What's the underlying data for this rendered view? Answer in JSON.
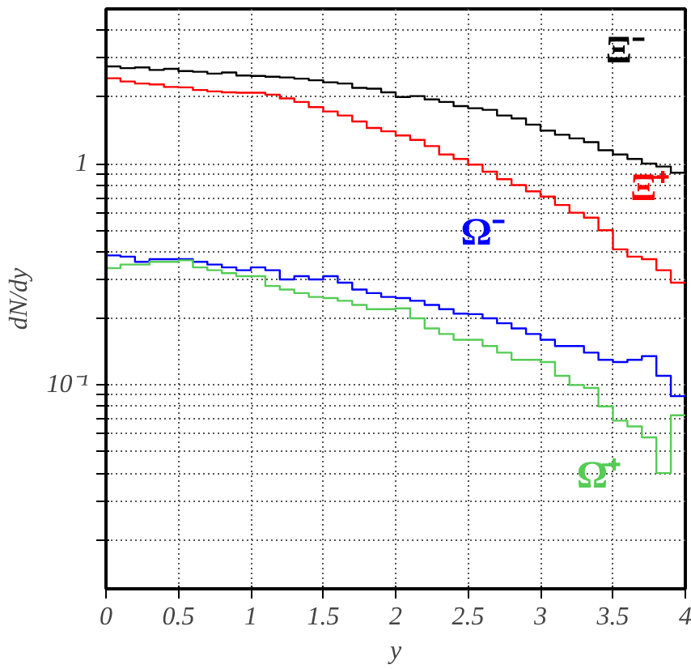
{
  "chart_data": {
    "type": "histogram",
    "xlabel": "y",
    "ylabel": "dN/dy",
    "log": "y",
    "grid": true,
    "line_style": "solid",
    "marker": "none",
    "xlim": [
      0,
      4
    ],
    "ylim": [
      0.012,
      5
    ],
    "xticks": [
      0,
      0.5,
      1,
      1.5,
      2,
      2.5,
      3,
      3.5,
      4
    ],
    "yticks": [
      {
        "value": 0.02,
        "label": null
      },
      {
        "value": 0.03,
        "label": null
      },
      {
        "value": 0.04,
        "label": null
      },
      {
        "value": 0.05,
        "label": null
      },
      {
        "value": 0.06,
        "label": null
      },
      {
        "value": 0.07,
        "label": null
      },
      {
        "value": 0.08,
        "label": null
      },
      {
        "value": 0.09,
        "label": null
      },
      {
        "value": 0.1,
        "label": "10⁻¹"
      },
      {
        "value": 0.2,
        "label": null
      },
      {
        "value": 0.3,
        "label": null
      },
      {
        "value": 0.4,
        "label": null
      },
      {
        "value": 0.5,
        "label": null
      },
      {
        "value": 0.6,
        "label": null
      },
      {
        "value": 0.7,
        "label": null
      },
      {
        "value": 0.8,
        "label": null
      },
      {
        "value": 0.9,
        "label": null
      },
      {
        "value": 1,
        "label": "1"
      },
      {
        "value": 2,
        "label": null
      },
      {
        "value": 3,
        "label": null
      },
      {
        "value": 4,
        "label": null
      }
    ],
    "bins": [
      0,
      0.1,
      0.2,
      0.3,
      0.4,
      0.5,
      0.6,
      0.7,
      0.8,
      0.9,
      1.0,
      1.1,
      1.2,
      1.3,
      1.4,
      1.5,
      1.6,
      1.7,
      1.8,
      1.9,
      2.0,
      2.1,
      2.2,
      2.3,
      2.4,
      2.5,
      2.6,
      2.7,
      2.8,
      2.9,
      3.0,
      3.1,
      3.2,
      3.3,
      3.4,
      3.5,
      3.6,
      3.7,
      3.8,
      3.9,
      4.0
    ],
    "series": [
      {
        "name": "Ξ⁻",
        "color": "#000000",
        "values": [
          2.75,
          2.7,
          2.72,
          2.65,
          2.68,
          2.62,
          2.6,
          2.55,
          2.58,
          2.5,
          2.49,
          2.47,
          2.45,
          2.42,
          2.38,
          2.33,
          2.3,
          2.2,
          2.18,
          2.1,
          2.0,
          2.02,
          1.95,
          1.9,
          1.82,
          1.78,
          1.75,
          1.65,
          1.6,
          1.5,
          1.41,
          1.35,
          1.3,
          1.25,
          1.15,
          1.1,
          1.05,
          1.0,
          0.97,
          0.91
        ]
      },
      {
        "name": "Ξ̄⁺",
        "color": "#ff0000",
        "values": [
          2.43,
          2.35,
          2.3,
          2.28,
          2.22,
          2.21,
          2.15,
          2.12,
          2.1,
          2.09,
          2.09,
          2.05,
          1.97,
          1.9,
          1.8,
          1.72,
          1.65,
          1.55,
          1.45,
          1.4,
          1.34,
          1.28,
          1.2,
          1.1,
          1.05,
          0.99,
          0.92,
          0.85,
          0.8,
          0.75,
          0.71,
          0.65,
          0.6,
          0.57,
          0.5,
          0.41,
          0.38,
          0.37,
          0.33,
          0.29
        ]
      },
      {
        "name": "Ω⁻",
        "color": "#0000ff",
        "values": [
          0.385,
          0.38,
          0.36,
          0.37,
          0.37,
          0.37,
          0.36,
          0.35,
          0.34,
          0.33,
          0.34,
          0.33,
          0.3,
          0.31,
          0.3,
          0.31,
          0.29,
          0.27,
          0.26,
          0.25,
          0.247,
          0.24,
          0.23,
          0.22,
          0.21,
          0.209,
          0.2,
          0.19,
          0.18,
          0.17,
          0.16,
          0.15,
          0.15,
          0.14,
          0.13,
          0.127,
          0.13,
          0.135,
          0.11,
          0.089
        ]
      },
      {
        "name": "Ω̄⁺",
        "color": "#55cc55",
        "values": [
          0.337,
          0.35,
          0.35,
          0.36,
          0.36,
          0.366,
          0.34,
          0.33,
          0.32,
          0.31,
          0.31,
          0.28,
          0.27,
          0.26,
          0.25,
          0.247,
          0.24,
          0.23,
          0.22,
          0.22,
          0.222,
          0.2,
          0.18,
          0.17,
          0.16,
          0.16,
          0.15,
          0.14,
          0.13,
          0.13,
          0.127,
          0.11,
          0.1,
          0.097,
          0.08,
          0.069,
          0.065,
          0.058,
          0.04,
          0.073
        ]
      }
    ]
  }
}
